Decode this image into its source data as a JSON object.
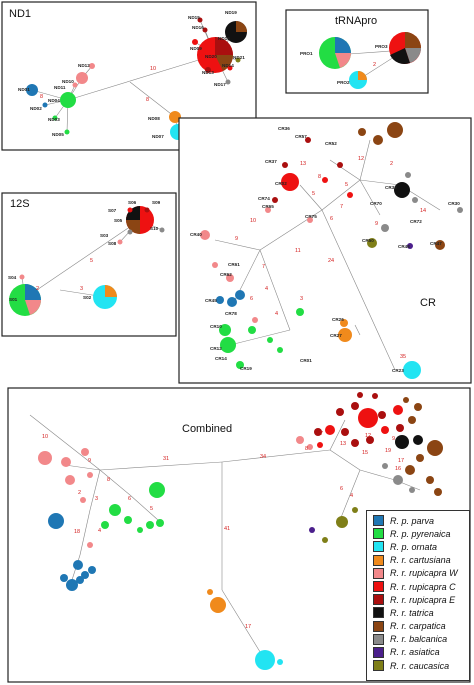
{
  "colors": {
    "parva": "#1f77b4",
    "pyrenaica": "#22dd44",
    "ornata": "#22e4f2",
    "cartusiana": "#f08a1c",
    "rup_w": "#f2888a",
    "rup_c": "#ee1111",
    "rup_e": "#aa0f0f",
    "tatrica": "#111111",
    "carpatica": "#8b4513",
    "balcanica": "#8a8a8a",
    "asiatica": "#4b1f8c",
    "caucasica": "#7f7f18"
  },
  "legend": [
    {
      "label": "R. p. parva",
      "color": "#1f77b4"
    },
    {
      "label": "R. p. pyrenaica",
      "color": "#22dd44"
    },
    {
      "label": "R. p. ornata",
      "color": "#22e4f2"
    },
    {
      "label": "R. r. cartusiana",
      "color": "#f08a1c"
    },
    {
      "label": "R. r. rupicapra W",
      "color": "#f2888a"
    },
    {
      "label": "R. r. rupicapra C",
      "color": "#ee1111"
    },
    {
      "label": "R. r. rupicapra E",
      "color": "#aa0f0f"
    },
    {
      "label": "R. r. tatrica",
      "color": "#111111"
    },
    {
      "label": "R. r. carpatica",
      "color": "#8b4513"
    },
    {
      "label": "R. r. balcanica",
      "color": "#8a8a8a"
    },
    {
      "label": "R. r. asiatica",
      "color": "#4b1f8c"
    },
    {
      "label": "R. r. caucasica",
      "color": "#7f7f18"
    }
  ],
  "panels": {
    "nd1": {
      "title": "ND1"
    },
    "trna": {
      "title": "tRNApro"
    },
    "s12": {
      "title": "12S"
    },
    "cr": {
      "title": "CR"
    },
    "combined": {
      "title": "Combined"
    }
  },
  "nd1": {
    "labels": [
      "ND01",
      "ND02",
      "ND03",
      "ND04",
      "ND05",
      "ND06",
      "ND07",
      "ND08",
      "ND09",
      "ND10",
      "ND11",
      "ND12",
      "ND13",
      "ND14",
      "ND15",
      "ND16",
      "ND17",
      "ND18",
      "ND19",
      "ND20",
      "ND21"
    ],
    "edges": [
      "10",
      "8",
      "8"
    ]
  },
  "trna": {
    "labels": [
      "PRO1",
      "PRO2",
      "PRO3"
    ],
    "edges": [
      "2"
    ]
  },
  "s12": {
    "labels": [
      "S01",
      "S02",
      "S03",
      "S04",
      "S05",
      "S06",
      "S07",
      "S08",
      "S09",
      "S10"
    ],
    "edges": [
      "5",
      "3",
      "2"
    ]
  },
  "cr": {
    "labels": [
      "CR01",
      "CR02",
      "CR10",
      "CR12",
      "CR14",
      "CR19",
      "CR23",
      "CR26",
      "CR27",
      "CR30",
      "CR33",
      "CR36",
      "CR37",
      "CR40",
      "CR45",
      "CR47",
      "CR48",
      "CR50",
      "CR52",
      "CR57",
      "CR61",
      "CR62",
      "CR65",
      "CR70",
      "CR72",
      "CR74",
      "CR75",
      "CR78"
    ],
    "edges": [
      "12",
      "11",
      "24",
      "35",
      "14",
      "9",
      "7",
      "6",
      "5",
      "4",
      "3",
      "2",
      "10",
      "13",
      "8",
      "7",
      "9",
      "6",
      "4",
      "5"
    ]
  },
  "combined": {
    "edges": [
      "31",
      "34",
      "41",
      "17",
      "18",
      "10",
      "9",
      "8",
      "6",
      "5",
      "4",
      "3",
      "2",
      "12",
      "13",
      "15",
      "19",
      "16",
      "4",
      "6",
      "7",
      "9",
      "17",
      "8"
    ]
  }
}
